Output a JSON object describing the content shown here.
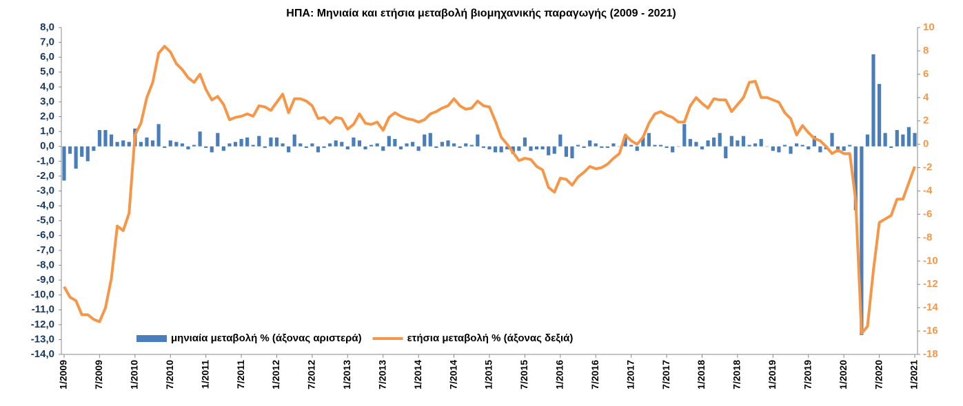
{
  "chart_data": {
    "type": "bar",
    "title": "ΗΠΑ: Μηνιαία και ετήσια μεταβολή βιομηχανικής παραγωγής (2009 - 2021)",
    "categories": [
      "1/2009",
      null,
      null,
      null,
      null,
      null,
      "7/2009",
      null,
      null,
      null,
      null,
      null,
      "1/2010",
      null,
      null,
      null,
      null,
      null,
      "7/2010",
      null,
      null,
      null,
      null,
      null,
      "1/2011",
      null,
      null,
      null,
      null,
      null,
      "7/2011",
      null,
      null,
      null,
      null,
      null,
      "1/2012",
      null,
      null,
      null,
      null,
      null,
      "7/2012",
      null,
      null,
      null,
      null,
      null,
      "1/2013",
      null,
      null,
      null,
      null,
      null,
      "7/2013",
      null,
      null,
      null,
      null,
      null,
      "1/2014",
      null,
      null,
      null,
      null,
      null,
      "7/2014",
      null,
      null,
      null,
      null,
      null,
      "1/2015",
      null,
      null,
      null,
      null,
      null,
      "7/2015",
      null,
      null,
      null,
      null,
      null,
      "1/2016",
      null,
      null,
      null,
      null,
      null,
      "7/2016",
      null,
      null,
      null,
      null,
      null,
      "1/2017",
      null,
      null,
      null,
      null,
      null,
      "7/2017",
      null,
      null,
      null,
      null,
      null,
      "1/2018",
      null,
      null,
      null,
      null,
      null,
      "7/2018",
      null,
      null,
      null,
      null,
      null,
      "1/2019",
      null,
      null,
      null,
      null,
      null,
      "7/2019",
      null,
      null,
      null,
      null,
      null,
      "1/2020",
      null,
      null,
      null,
      null,
      null,
      "7/2020",
      null,
      null,
      null,
      null,
      null,
      "1/2021"
    ],
    "series": [
      {
        "name": "μηνιαία μεταβολή % (άξονας αριστερά)",
        "type": "bar",
        "color": "#4a7ebb",
        "values": [
          -2.3,
          -0.5,
          -1.5,
          -0.7,
          -1.0,
          -0.3,
          1.1,
          1.1,
          0.8,
          0.3,
          0.4,
          0.3,
          1.2,
          0.3,
          0.6,
          0.4,
          1.5,
          -0.1,
          0.4,
          0.3,
          0.2,
          -0.2,
          0.1,
          1.0,
          -0.1,
          -0.4,
          0.9,
          -0.3,
          0.2,
          0.3,
          0.5,
          0.6,
          0.1,
          0.7,
          -0.1,
          0.6,
          0.6,
          0.2,
          -0.4,
          0.8,
          0.2,
          -0.1,
          0.2,
          -0.4,
          -0.1,
          0.2,
          0.4,
          0.3,
          -0.2,
          0.6,
          0.4,
          -0.2,
          0.1,
          0.2,
          -0.3,
          0.7,
          0.5,
          -0.2,
          0.2,
          0.3,
          -0.3,
          0.8,
          0.9,
          -0.1,
          0.3,
          0.4,
          0.2,
          -0.1,
          0.2,
          0.1,
          0.8,
          -0.1,
          -0.2,
          -0.4,
          -0.4,
          -0.2,
          -0.5,
          -0.3,
          0.6,
          -0.3,
          -0.2,
          -0.2,
          -0.6,
          -0.5,
          0.8,
          -0.7,
          -0.8,
          0.1,
          -0.1,
          0.4,
          0.2,
          -0.1,
          -0.1,
          0.2,
          0.0,
          0.6,
          0.1,
          -0.3,
          0.6,
          0.9,
          0.1,
          0.1,
          -0.1,
          -0.4,
          0.0,
          1.5,
          0.5,
          0.3,
          -0.2,
          0.4,
          0.6,
          0.9,
          -0.8,
          0.7,
          0.4,
          0.7,
          0.1,
          0.2,
          0.5,
          0.0,
          -0.3,
          -0.4,
          0.1,
          -0.5,
          0.2,
          0.1,
          -0.2,
          0.7,
          -0.4,
          -0.2,
          0.9,
          -0.4,
          -0.3,
          0.1,
          -4.3,
          -12.7,
          0.8,
          6.2,
          4.2,
          0.9,
          -0.1,
          1.1,
          0.8,
          1.3,
          0.9
        ]
      },
      {
        "name": "ετήσια μεταβολή % (άξονας δεξιά)",
        "type": "line",
        "axis": "y2",
        "color": "#f79646",
        "values": [
          -12.2,
          -13.1,
          -13.4,
          -14.6,
          -14.6,
          -15.0,
          -15.2,
          -14.0,
          -11.5,
          -7.0,
          -7.4,
          -5.9,
          0.8,
          1.8,
          4.0,
          5.3,
          7.8,
          8.4,
          7.9,
          6.9,
          6.4,
          5.7,
          5.3,
          6.0,
          4.7,
          3.8,
          4.1,
          3.4,
          2.1,
          2.3,
          2.4,
          2.6,
          2.4,
          3.3,
          3.2,
          2.9,
          3.6,
          4.3,
          2.7,
          3.9,
          3.9,
          3.7,
          3.3,
          2.2,
          2.3,
          1.8,
          2.3,
          2.2,
          1.3,
          1.7,
          2.6,
          1.8,
          1.7,
          1.9,
          1.2,
          2.3,
          2.7,
          2.4,
          2.2,
          2.1,
          1.9,
          2.1,
          2.6,
          2.8,
          3.1,
          3.3,
          3.9,
          3.3,
          3.0,
          3.1,
          3.7,
          3.3,
          3.2,
          2.0,
          0.6,
          0.0,
          -0.7,
          -1.4,
          -1.2,
          -1.3,
          -1.9,
          -2.2,
          -3.7,
          -4.1,
          -2.9,
          -3.0,
          -3.5,
          -2.8,
          -2.4,
          -1.9,
          -2.1,
          -2.0,
          -1.7,
          -1.2,
          -0.8,
          0.8,
          0.3,
          0.0,
          0.6,
          1.8,
          2.6,
          2.8,
          2.5,
          2.3,
          1.9,
          1.9,
          3.3,
          4.0,
          3.5,
          3.1,
          3.9,
          3.8,
          3.8,
          2.8,
          3.4,
          4.0,
          5.3,
          5.4,
          4.0,
          4.0,
          3.8,
          3.6,
          2.7,
          2.2,
          0.8,
          1.6,
          1.0,
          0.5,
          0.3,
          -0.2,
          -0.8,
          -0.5,
          -0.8,
          -0.8,
          -4.8,
          -16.2,
          -15.6,
          -10.8,
          -6.7,
          -6.4,
          -6.1,
          -4.7,
          -4.7,
          -3.3,
          -1.9
        ]
      }
    ],
    "ylim": [
      -14,
      8
    ],
    "yticks": [
      {
        "value": 8,
        "label": "8,0"
      },
      {
        "value": 7,
        "label": "7,0"
      },
      {
        "value": 6,
        "label": "6,0"
      },
      {
        "value": 5,
        "label": "5,0"
      },
      {
        "value": 4,
        "label": "4,0"
      },
      {
        "value": 3,
        "label": "3,0"
      },
      {
        "value": 2,
        "label": "2,0"
      },
      {
        "value": 1,
        "label": "1,0"
      },
      {
        "value": 0,
        "label": "0,0"
      },
      {
        "value": -1,
        "label": "-1,0"
      },
      {
        "value": -2,
        "label": "-2,0"
      },
      {
        "value": -3,
        "label": "-3,0"
      },
      {
        "value": -4,
        "label": "-4,0"
      },
      {
        "value": -5,
        "label": "-5,0"
      },
      {
        "value": -6,
        "label": "-6,0"
      },
      {
        "value": -7,
        "label": "-7,0"
      },
      {
        "value": -8,
        "label": "-8,0"
      },
      {
        "value": -9,
        "label": "-9,0"
      },
      {
        "value": -10,
        "label": "-10,0"
      },
      {
        "value": -11,
        "label": "-11,0"
      },
      {
        "value": -12,
        "label": "-12,0"
      },
      {
        "value": -13,
        "label": "-13,0"
      },
      {
        "value": -14,
        "label": "-14,0"
      }
    ],
    "y2lim": [
      -18,
      10
    ],
    "y2ticks": [
      10,
      8,
      6,
      4,
      2,
      0,
      -2,
      -4,
      -6,
      -8,
      -10,
      -12,
      -14,
      -16,
      -18
    ],
    "legend": "lower center",
    "grid": false
  }
}
